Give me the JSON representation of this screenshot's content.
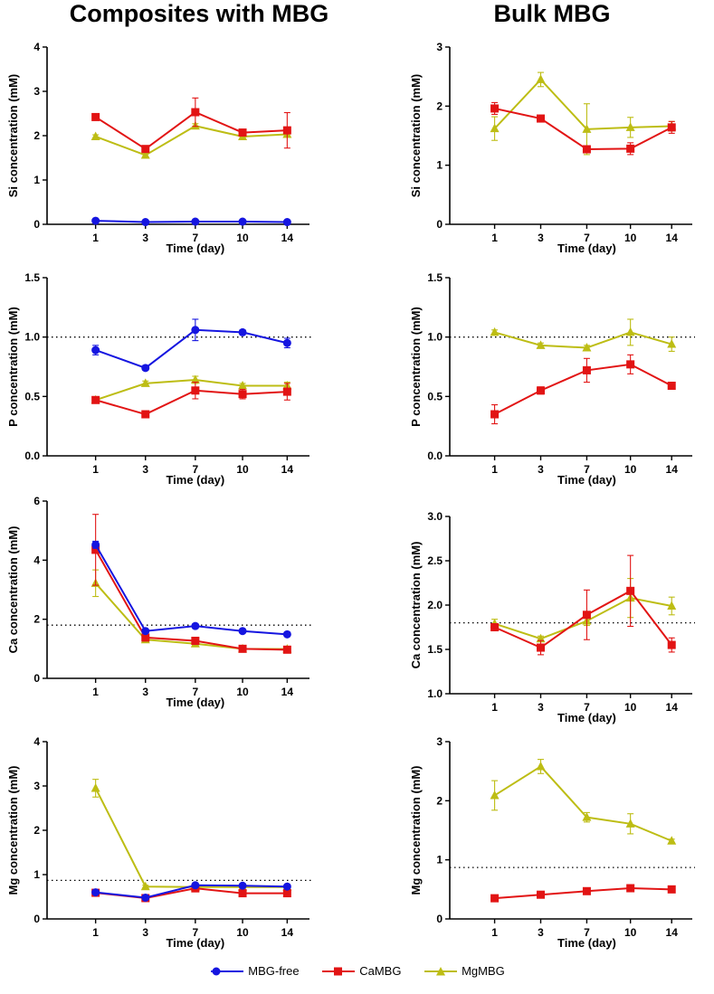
{
  "column_titles": {
    "left": "Composites with MBG",
    "right": "Bulk MBG"
  },
  "series_styles": {
    "MBG-free": {
      "color": "#1515e0",
      "marker": "circle"
    },
    "CaMBG": {
      "color": "#e21414",
      "marker": "square"
    },
    "MgMBG": {
      "color": "#bdbd14",
      "marker": "triangle"
    }
  },
  "legend": [
    {
      "name": "MBG-free",
      "color": "#1515e0",
      "marker": "circle"
    },
    {
      "name": "CaMBG",
      "color": "#e21414",
      "marker": "square"
    },
    {
      "name": "MgMBG",
      "color": "#bdbd14",
      "marker": "triangle"
    }
  ],
  "chart_data": [
    {
      "type": "line",
      "panel": "composites-si",
      "categories": [
        "1",
        "3",
        "7",
        "10",
        "14"
      ],
      "xlabel": "Time (day)",
      "ylabel": "Si concentration (mM)",
      "ylim": [
        0,
        4
      ],
      "yticks": [
        "0",
        "1",
        "2",
        "3",
        "4"
      ],
      "reference": null,
      "series": [
        {
          "name": "MBG-free",
          "values": [
            0.08,
            0.05,
            0.06,
            0.06,
            0.05
          ],
          "errors": [
            0.02,
            0.01,
            0.01,
            0.01,
            0.01
          ]
        },
        {
          "name": "CaMBG",
          "values": [
            2.42,
            1.7,
            2.53,
            2.07,
            2.12
          ],
          "errors": [
            0.05,
            0.06,
            0.32,
            0.06,
            0.4
          ]
        },
        {
          "name": "MgMBG",
          "values": [
            1.98,
            1.56,
            2.22,
            1.98,
            2.03
          ],
          "errors": [
            0.04,
            0.05,
            0.05,
            0.04,
            0.05
          ]
        }
      ]
    },
    {
      "type": "line",
      "panel": "bulk-si",
      "categories": [
        "1",
        "3",
        "7",
        "10",
        "14"
      ],
      "xlabel": "Time (day)",
      "ylabel": "Si concentration (mM)",
      "ylim": [
        0,
        3
      ],
      "yticks": [
        "0",
        "1",
        "2",
        "3"
      ],
      "reference": null,
      "series": [
        {
          "name": "CaMBG",
          "values": [
            1.96,
            1.79,
            1.27,
            1.28,
            1.64
          ],
          "errors": [
            0.1,
            0.04,
            0.06,
            0.1,
            0.1
          ]
        },
        {
          "name": "MgMBG",
          "values": [
            1.62,
            2.45,
            1.61,
            1.64,
            1.66
          ],
          "errors": [
            0.2,
            0.12,
            0.43,
            0.17,
            0.08
          ]
        }
      ]
    },
    {
      "type": "line",
      "panel": "composites-p",
      "categories": [
        "1",
        "3",
        "7",
        "10",
        "14"
      ],
      "xlabel": "Time (day)",
      "ylabel": "P concentration (mM)",
      "ylim": [
        0,
        1.5
      ],
      "yticks": [
        "0.0",
        "0.5",
        "1.0",
        "1.5"
      ],
      "reference": 1.0,
      "series": [
        {
          "name": "MBG-free",
          "values": [
            0.89,
            0.74,
            1.06,
            1.04,
            0.95
          ],
          "errors": [
            0.04,
            0.02,
            0.09,
            0.02,
            0.04
          ]
        },
        {
          "name": "CaMBG",
          "values": [
            0.47,
            0.35,
            0.55,
            0.52,
            0.54
          ],
          "errors": [
            0.02,
            0.02,
            0.07,
            0.04,
            0.07
          ]
        },
        {
          "name": "MgMBG",
          "values": [
            0.47,
            0.61,
            0.64,
            0.59,
            0.59
          ],
          "errors": [
            0.02,
            0.02,
            0.03,
            0.02,
            0.03
          ]
        }
      ]
    },
    {
      "type": "line",
      "panel": "bulk-p",
      "categories": [
        "1",
        "3",
        "7",
        "10",
        "14"
      ],
      "xlabel": "Time (day)",
      "ylabel": "P concentration (mM)",
      "ylim": [
        0,
        1.5
      ],
      "yticks": [
        "0.0",
        "0.5",
        "1.0",
        "1.5"
      ],
      "reference": 1.0,
      "series": [
        {
          "name": "CaMBG",
          "values": [
            0.35,
            0.55,
            0.72,
            0.77,
            0.59
          ],
          "errors": [
            0.08,
            0.03,
            0.1,
            0.08,
            0.03
          ]
        },
        {
          "name": "MgMBG",
          "values": [
            1.04,
            0.93,
            0.91,
            1.04,
            0.94
          ],
          "errors": [
            0.02,
            0.02,
            0.02,
            0.11,
            0.06
          ]
        }
      ]
    },
    {
      "type": "line",
      "panel": "composites-ca",
      "categories": [
        "1",
        "3",
        "7",
        "10",
        "14"
      ],
      "xlabel": "Time (day)",
      "ylabel": "Ca concentration (mM)",
      "ylim": [
        0,
        6
      ],
      "yticks": [
        "0",
        "2",
        "4",
        "6"
      ],
      "reference": 1.8,
      "series": [
        {
          "name": "MBG-free",
          "values": [
            4.52,
            1.6,
            1.77,
            1.6,
            1.49
          ],
          "errors": [
            0.12,
            0.06,
            0.08,
            0.05,
            0.04
          ]
        },
        {
          "name": "CaMBG",
          "values": [
            4.35,
            1.38,
            1.27,
            1.0,
            0.97
          ],
          "errors": [
            1.2,
            0.05,
            0.05,
            0.06,
            0.05
          ]
        },
        {
          "name": "MgMBG",
          "values": [
            3.22,
            1.31,
            1.17,
            1.0,
            0.99
          ],
          "errors": [
            0.45,
            0.05,
            0.05,
            0.05,
            0.05
          ]
        }
      ]
    },
    {
      "type": "line",
      "panel": "bulk-ca",
      "categories": [
        "1",
        "3",
        "7",
        "10",
        "14"
      ],
      "xlabel": "Time (day)",
      "ylabel": "Ca concentration (mM)",
      "ylim": [
        1.0,
        3.0
      ],
      "yticks": [
        "1.0",
        "1.5",
        "2.0",
        "2.5",
        "3.0"
      ],
      "reference": 1.8,
      "series": [
        {
          "name": "CaMBG",
          "values": [
            1.75,
            1.52,
            1.89,
            2.16,
            1.55
          ],
          "errors": [
            0.04,
            0.08,
            0.28,
            0.4,
            0.08
          ]
        },
        {
          "name": "MgMBG",
          "values": [
            1.79,
            1.62,
            1.82,
            2.08,
            1.99
          ],
          "errors": [
            0.05,
            0.03,
            0.05,
            0.22,
            0.1
          ]
        }
      ]
    },
    {
      "type": "line",
      "panel": "composites-mg",
      "categories": [
        "1",
        "3",
        "7",
        "10",
        "14"
      ],
      "xlabel": "Time (day)",
      "ylabel": "Mg concentration (mM)",
      "ylim": [
        0,
        4
      ],
      "yticks": [
        "0",
        "1",
        "2",
        "3",
        "4"
      ],
      "reference": 0.87,
      "series": [
        {
          "name": "MBG-free",
          "values": [
            0.6,
            0.48,
            0.76,
            0.75,
            0.73
          ],
          "errors": [
            0.03,
            0.02,
            0.03,
            0.03,
            0.03
          ]
        },
        {
          "name": "CaMBG",
          "values": [
            0.59,
            0.47,
            0.69,
            0.58,
            0.58
          ],
          "errors": [
            0.03,
            0.03,
            0.03,
            0.03,
            0.03
          ]
        },
        {
          "name": "MgMBG",
          "values": [
            2.95,
            0.73,
            0.72,
            0.72,
            0.72
          ],
          "errors": [
            0.2,
            0.03,
            0.03,
            0.03,
            0.03
          ]
        }
      ]
    },
    {
      "type": "line",
      "panel": "bulk-mg",
      "categories": [
        "1",
        "3",
        "7",
        "10",
        "14"
      ],
      "xlabel": "Time (day)",
      "ylabel": "Mg concentration (mM)",
      "ylim": [
        0,
        3
      ],
      "yticks": [
        "0",
        "1",
        "2",
        "3"
      ],
      "reference": 0.87,
      "series": [
        {
          "name": "CaMBG",
          "values": [
            0.35,
            0.41,
            0.47,
            0.52,
            0.5
          ],
          "errors": [
            0.02,
            0.02,
            0.02,
            0.02,
            0.02
          ]
        },
        {
          "name": "MgMBG",
          "values": [
            2.09,
            2.58,
            1.72,
            1.61,
            1.32
          ],
          "errors": [
            0.25,
            0.12,
            0.08,
            0.17,
            0.03
          ]
        }
      ]
    }
  ]
}
